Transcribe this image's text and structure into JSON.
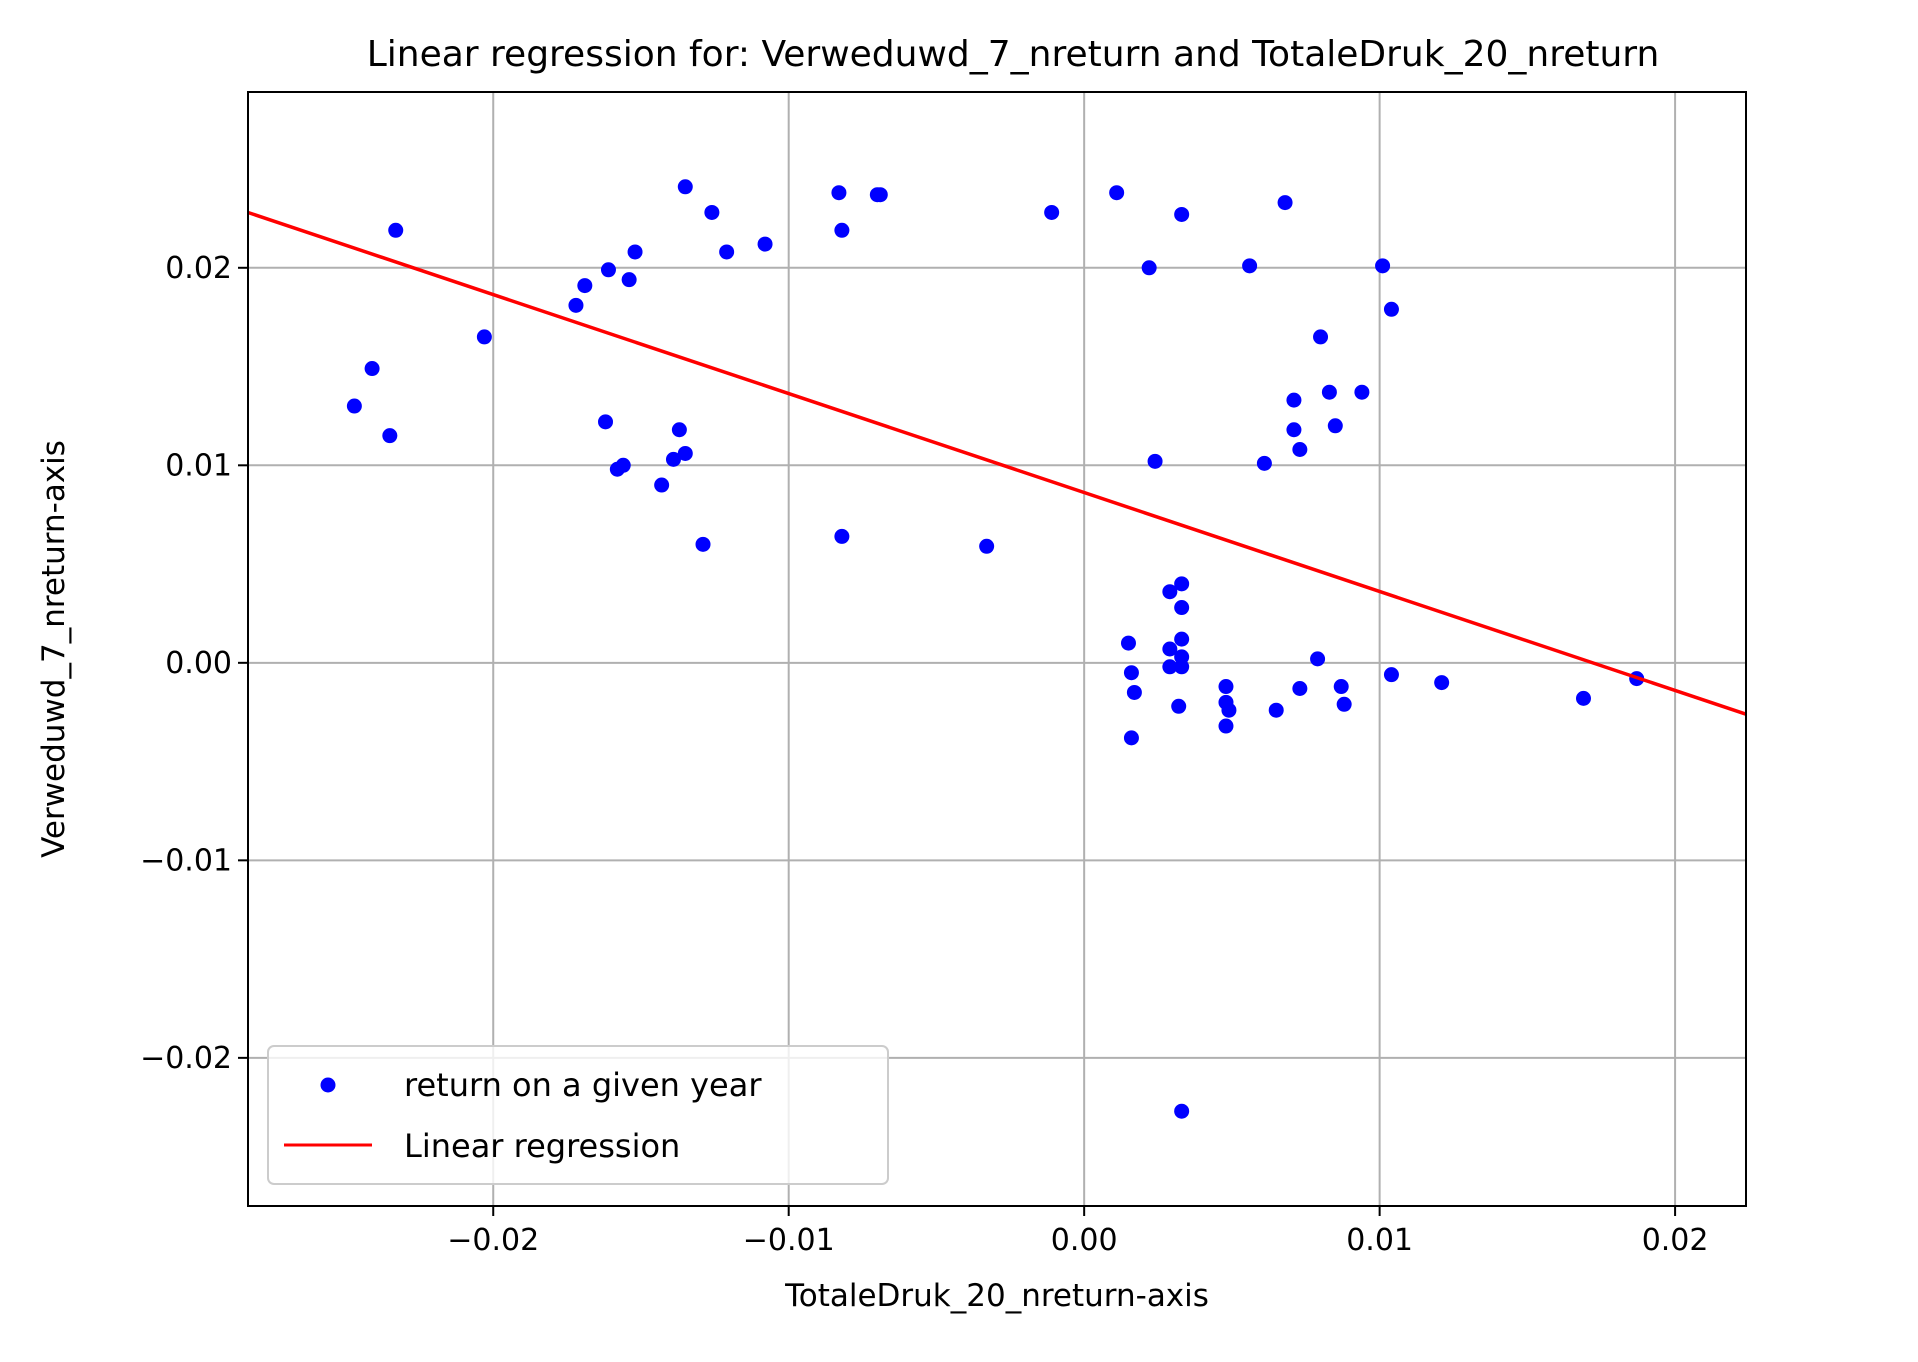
{
  "chart_data": {
    "type": "scatter",
    "title": "Linear regression for: Verweduwd_7_nreturn and TotaleDruk_20_nreturn",
    "xlabel": "TotaleDruk_20_nreturn-axis",
    "ylabel": "Verweduwd_7_nreturn-axis",
    "xlim": [
      -0.0283,
      0.0224
    ],
    "ylim": [
      -0.0275,
      0.0289
    ],
    "x_ticks": [
      -0.02,
      -0.01,
      0.0,
      0.01,
      0.02
    ],
    "x_tick_labels": [
      "−0.02",
      "−0.01",
      "0.00",
      "0.01",
      "0.02"
    ],
    "y_ticks": [
      -0.02,
      -0.01,
      0.0,
      0.01,
      0.02
    ],
    "y_tick_labels": [
      "−0.02",
      "−0.01",
      "0.00",
      "0.01",
      "0.02"
    ],
    "grid": true,
    "legend_position": "lower-left",
    "series": [
      {
        "name": "return on a given year",
        "kind": "scatter",
        "color": "#0000ff",
        "points": [
          [
            -0.0233,
            0.0219
          ],
          [
            -0.0241,
            0.0149
          ],
          [
            -0.0247,
            0.013
          ],
          [
            -0.0235,
            0.0115
          ],
          [
            -0.0203,
            0.0165
          ],
          [
            -0.0172,
            0.0181
          ],
          [
            -0.0169,
            0.0191
          ],
          [
            -0.0161,
            0.0199
          ],
          [
            -0.0154,
            0.0194
          ],
          [
            -0.0152,
            0.0208
          ],
          [
            -0.0162,
            0.0122
          ],
          [
            -0.0158,
            0.0098
          ],
          [
            -0.0156,
            0.01
          ],
          [
            -0.0143,
            0.009
          ],
          [
            -0.0139,
            0.0103
          ],
          [
            -0.0137,
            0.0118
          ],
          [
            -0.0135,
            0.0106
          ],
          [
            -0.0135,
            0.0241
          ],
          [
            -0.0126,
            0.0228
          ],
          [
            -0.0121,
            0.0208
          ],
          [
            -0.0108,
            0.0212
          ],
          [
            -0.0129,
            0.006
          ],
          [
            -0.0083,
            0.0238
          ],
          [
            -0.0082,
            0.0219
          ],
          [
            -0.007,
            0.0237
          ],
          [
            -0.0069,
            0.0237
          ],
          [
            -0.0082,
            0.0064
          ],
          [
            -0.0033,
            0.0059
          ],
          [
            -0.0011,
            0.0228
          ],
          [
            0.0011,
            0.0238
          ],
          [
            0.0022,
            0.02
          ],
          [
            0.0033,
            0.0227
          ],
          [
            0.0024,
            0.0102
          ],
          [
            0.0056,
            0.0201
          ],
          [
            0.0068,
            0.0233
          ],
          [
            0.0061,
            0.0101
          ],
          [
            0.008,
            0.0165
          ],
          [
            0.0071,
            0.0133
          ],
          [
            0.0083,
            0.0137
          ],
          [
            0.0094,
            0.0137
          ],
          [
            0.0071,
            0.0118
          ],
          [
            0.0085,
            0.012
          ],
          [
            0.0073,
            0.0108
          ],
          [
            0.0101,
            0.0201
          ],
          [
            0.0104,
            0.0179
          ],
          [
            0.0033,
            0.004
          ],
          [
            0.0029,
            0.0036
          ],
          [
            0.0033,
            0.0028
          ],
          [
            0.0015,
            0.001
          ],
          [
            0.0029,
            0.0007
          ],
          [
            0.0033,
            0.0012
          ],
          [
            0.0033,
            0.0003
          ],
          [
            0.0029,
            -0.0002
          ],
          [
            0.0033,
            -0.0002
          ],
          [
            0.0016,
            -0.0005
          ],
          [
            0.0017,
            -0.0015
          ],
          [
            0.0032,
            -0.0022
          ],
          [
            0.0016,
            -0.0038
          ],
          [
            0.0048,
            -0.0012
          ],
          [
            0.0048,
            -0.002
          ],
          [
            0.0049,
            -0.0024
          ],
          [
            0.0048,
            -0.0032
          ],
          [
            0.0065,
            -0.0024
          ],
          [
            0.0073,
            -0.0013
          ],
          [
            0.0079,
            0.0002
          ],
          [
            0.0087,
            -0.0012
          ],
          [
            0.0088,
            -0.0021
          ],
          [
            0.0104,
            -0.0006
          ],
          [
            0.0121,
            -0.001
          ],
          [
            0.0169,
            -0.0018
          ],
          [
            0.0187,
            -0.0008
          ],
          [
            0.0033,
            -0.0227
          ]
        ]
      },
      {
        "name": "Linear regression",
        "kind": "line",
        "color": "#ff0000",
        "points": [
          [
            -0.0283,
            0.0228
          ],
          [
            0.0224,
            -0.0026
          ]
        ]
      }
    ]
  }
}
